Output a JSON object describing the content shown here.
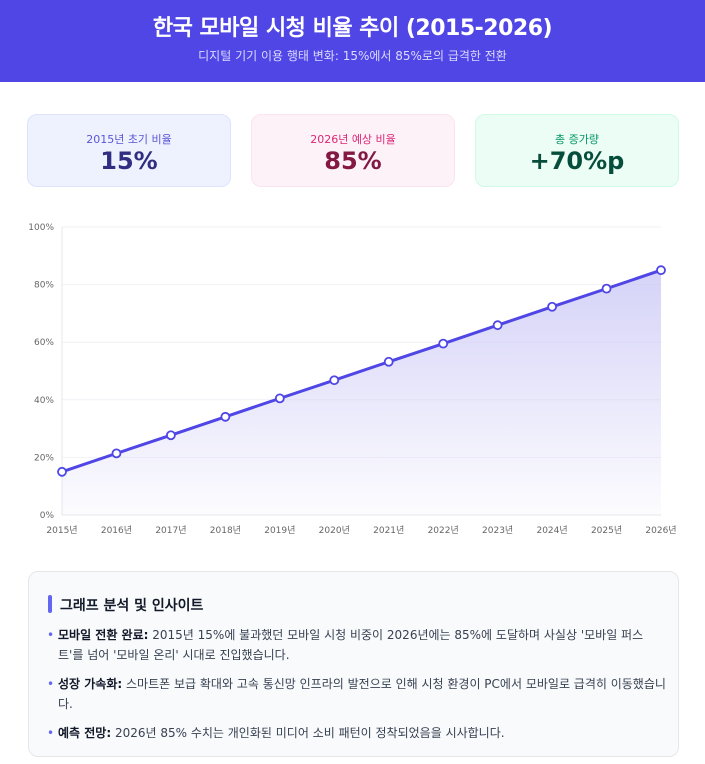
{
  "header": {
    "title": "한국 모바일 시청 비율 추이 (2015-2026)",
    "subtitle": "디지털 기기 이용 행태 변화: 15%에서 85%로의 급격한 전환"
  },
  "stats": [
    {
      "label": "2015년 초기 비율",
      "value": "15%"
    },
    {
      "label": "2026년 예상 비율",
      "value": "85%"
    },
    {
      "label": "총 증가량",
      "value": "+70%p"
    }
  ],
  "colors": {
    "header_bg": "#4f46e5",
    "line": "#4f46e5",
    "fill_top": "#c7c4f5",
    "bullet": "#6366f1"
  },
  "chart_data": {
    "type": "area",
    "title": "",
    "xlabel": "",
    "ylabel": "",
    "categories": [
      "2015년",
      "2016년",
      "2017년",
      "2018년",
      "2019년",
      "2020년",
      "2021년",
      "2022년",
      "2023년",
      "2024년",
      "2025년",
      "2026년"
    ],
    "series": [
      {
        "name": "모바일 시청 비율",
        "values": [
          15,
          21.4,
          27.7,
          34.1,
          40.5,
          46.8,
          53.2,
          59.5,
          65.9,
          72.3,
          78.6,
          85
        ]
      }
    ],
    "yticks": [
      "0%",
      "20%",
      "40%",
      "60%",
      "80%",
      "100%"
    ],
    "ylim": [
      0,
      100
    ],
    "grid": true,
    "legend": "none"
  },
  "insights": {
    "heading": "그래프 분석 및 인사이트",
    "items": [
      {
        "title": "모바일 전환 완료:",
        "text": " 2015년 15%에 불과했던 모바일 시청 비중이 2026년에는 85%에 도달하며 사실상 '모바일 퍼스트'를 넘어 '모바일 온리' 시대로 진입했습니다."
      },
      {
        "title": "성장 가속화:",
        "text": " 스마트폰 보급 확대와 고속 통신망 인프라의 발전으로 인해 시청 환경이 PC에서 모바일로 급격히 이동했습니다."
      },
      {
        "title": "예측 전망:",
        "text": " 2026년 85% 수치는 개인화된 미디어 소비 패턴이 정착되었음을 시사합니다."
      }
    ]
  }
}
